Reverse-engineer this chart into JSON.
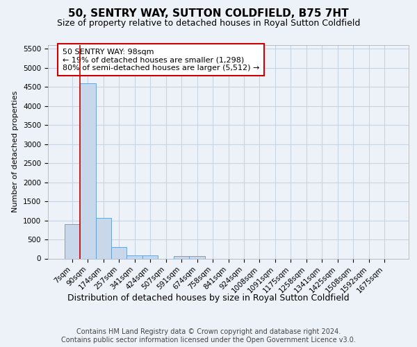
{
  "title": "50, SENTRY WAY, SUTTON COLDFIELD, B75 7HT",
  "subtitle": "Size of property relative to detached houses in Royal Sutton Coldfield",
  "xlabel": "Distribution of detached houses by size in Royal Sutton Coldfield",
  "ylabel": "Number of detached properties",
  "footer_line1": "Contains HM Land Registry data © Crown copyright and database right 2024.",
  "footer_line2": "Contains public sector information licensed under the Open Government Licence v3.0.",
  "annotation_line1": "50 SENTRY WAY: 98sqm",
  "annotation_line2": "← 19% of detached houses are smaller (1,298)",
  "annotation_line3": "80% of semi-detached houses are larger (5,512) →",
  "bar_color": "#c8d8ea",
  "bar_edge_color": "#5b9bd5",
  "red_line_color": "#cc0000",
  "grid_color": "#c8d4e4",
  "background_color": "#edf2f8",
  "categories": [
    "7sqm",
    "90sqm",
    "174sqm",
    "257sqm",
    "341sqm",
    "424sqm",
    "507sqm",
    "591sqm",
    "674sqm",
    "758sqm",
    "841sqm",
    "924sqm",
    "1008sqm",
    "1091sqm",
    "1175sqm",
    "1258sqm",
    "1341sqm",
    "1425sqm",
    "1508sqm",
    "1592sqm",
    "1675sqm"
  ],
  "values": [
    900,
    4600,
    1060,
    300,
    80,
    80,
    0,
    55,
    55,
    0,
    0,
    0,
    0,
    0,
    0,
    0,
    0,
    0,
    0,
    0,
    0
  ],
  "ylim": [
    0,
    5600
  ],
  "yticks": [
    0,
    500,
    1000,
    1500,
    2000,
    2500,
    3000,
    3500,
    4000,
    4500,
    5000,
    5500
  ],
  "red_line_x": 0.5,
  "title_fontsize": 11,
  "subtitle_fontsize": 9,
  "footer_fontsize": 7,
  "ylabel_fontsize": 8,
  "xlabel_fontsize": 9,
  "tick_fontsize": 7.5,
  "annot_fontsize": 8
}
